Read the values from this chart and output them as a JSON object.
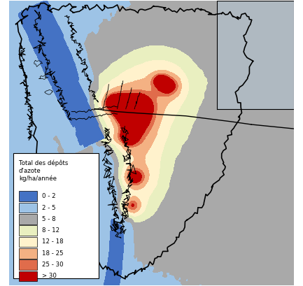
{
  "legend_title": "Total des dépôts\nd'azote\nkg/ha/année",
  "legend_labels": [
    "0 - 2",
    "2 - 5",
    "5 - 8",
    "8 - 12",
    "12 - 18",
    "18 - 25",
    "25 - 30",
    "> 30"
  ],
  "legend_colors": [
    "#4472C4",
    "#9DC3E6",
    "#A9A9A9",
    "#E9EFC0",
    "#FFF2CC",
    "#F4B183",
    "#E06C4B",
    "#C00000"
  ],
  "background_color": "#FFFFFF",
  "figsize": [
    4.33,
    4.09
  ],
  "dpi": 100
}
